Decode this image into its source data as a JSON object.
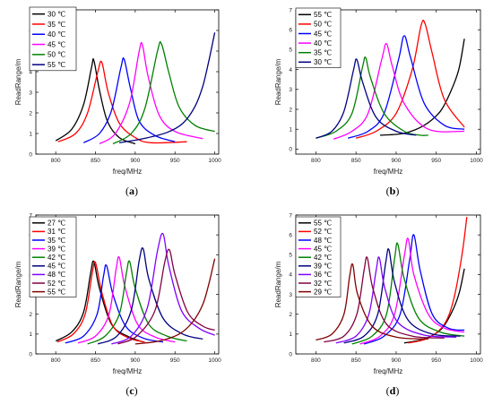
{
  "chart_data": [
    {
      "type": "line",
      "panel_label": "(a)",
      "xlabel": "freq/MHz",
      "ylabel": "ReadRange/m",
      "xlim": [
        775,
        1005
      ],
      "ylim": [
        0,
        7
      ],
      "xticks": [
        800,
        850,
        900,
        950,
        1000
      ],
      "yticks": [
        0,
        1,
        2,
        3,
        4,
        5,
        6,
        7
      ],
      "legend_position": "top-left",
      "series": [
        {
          "name": "30 ℃",
          "color": "#000000",
          "x": [
            800,
            820,
            835,
            845,
            848,
            855,
            865,
            880,
            900
          ],
          "y": [
            0.65,
            1.2,
            2.4,
            4.2,
            4.55,
            3.1,
            1.6,
            0.8,
            0.5
          ]
        },
        {
          "name": "35 ℃",
          "color": "#ff0000",
          "x": [
            803,
            825,
            840,
            853,
            858,
            866,
            880,
            900,
            920,
            965
          ],
          "y": [
            0.6,
            1.0,
            2.0,
            4.0,
            4.45,
            3.0,
            1.5,
            0.8,
            0.55,
            0.6
          ]
        },
        {
          "name": "40 ℃",
          "color": "#0000ff",
          "x": [
            835,
            855,
            870,
            882,
            886,
            894,
            905,
            925,
            950
          ],
          "y": [
            0.55,
            1.0,
            2.1,
            4.2,
            4.6,
            3.2,
            1.6,
            0.9,
            0.6
          ]
        },
        {
          "name": "45 ℃",
          "color": "#ff00ff",
          "x": [
            855,
            875,
            893,
            905,
            909,
            916,
            930,
            950,
            985
          ],
          "y": [
            0.5,
            1.0,
            2.5,
            5.0,
            5.3,
            3.8,
            1.9,
            1.1,
            0.75
          ]
        },
        {
          "name": "50 ℃",
          "color": "#008000",
          "x": [
            872,
            895,
            912,
            928,
            933,
            942,
            955,
            975,
            1000
          ],
          "y": [
            0.5,
            1.0,
            2.2,
            5.0,
            5.35,
            4.0,
            2.3,
            1.4,
            1.1
          ]
        },
        {
          "name": "55 ℃",
          "color": "#000080",
          "x": [
            880,
            910,
            940,
            960,
            975,
            985,
            993,
            1000
          ],
          "y": [
            0.55,
            0.75,
            1.05,
            1.5,
            2.3,
            3.3,
            4.6,
            5.9
          ]
        }
      ]
    },
    {
      "type": "line",
      "panel_label": "(b)",
      "xlabel": "freq/MHz",
      "ylabel": "ReadRange/m",
      "xlim": [
        775,
        1005
      ],
      "ylim": [
        -0.25,
        7
      ],
      "xticks": [
        800,
        850,
        900,
        950,
        1000
      ],
      "yticks": [
        0,
        1,
        2,
        3,
        4,
        5,
        6,
        7
      ],
      "legend_position": "top-left",
      "series": [
        {
          "name": "55 ℃",
          "color": "#000000",
          "x": [
            880,
            910,
            935,
            955,
            968,
            978,
            985
          ],
          "y": [
            0.7,
            0.8,
            1.2,
            1.9,
            2.9,
            4.0,
            5.55
          ]
        },
        {
          "name": "50 ℃",
          "color": "#ff0000",
          "x": [
            850,
            875,
            900,
            920,
            931,
            936,
            945,
            960,
            985
          ],
          "y": [
            0.55,
            0.9,
            1.8,
            4.0,
            6.2,
            6.3,
            4.8,
            2.5,
            1.1
          ]
        },
        {
          "name": "45 ℃",
          "color": "#0000ff",
          "x": [
            840,
            865,
            885,
            903,
            910,
            918,
            935,
            960,
            985
          ],
          "y": [
            0.55,
            0.9,
            1.8,
            4.5,
            5.7,
            4.6,
            2.3,
            1.2,
            1.0
          ]
        },
        {
          "name": "40 ℃",
          "color": "#ff00ff",
          "x": [
            822,
            845,
            865,
            882,
            888,
            895,
            910,
            940,
            985
          ],
          "y": [
            0.5,
            0.9,
            1.8,
            4.5,
            5.3,
            4.2,
            2.3,
            1.0,
            0.9
          ]
        },
        {
          "name": "35 ℃",
          "color": "#008000",
          "x": [
            800,
            825,
            845,
            858,
            862,
            868,
            885,
            910,
            930,
            940
          ],
          "y": [
            0.55,
            0.9,
            1.8,
            4.1,
            4.6,
            3.6,
            1.8,
            0.9,
            0.7,
            0.7
          ]
        },
        {
          "name": "30 ℃",
          "color": "#000080",
          "x": [
            800,
            820,
            835,
            847,
            851,
            858,
            875,
            900,
            925
          ],
          "y": [
            0.55,
            0.9,
            1.9,
            4.0,
            4.5,
            3.4,
            1.6,
            0.9,
            0.7
          ]
        }
      ]
    },
    {
      "type": "line",
      "panel_label": "(c)",
      "xlabel": "freq/MHz",
      "ylabel": "ReadRange/m",
      "xlim": [
        775,
        1005
      ],
      "ylim": [
        0,
        7
      ],
      "xticks": [
        800,
        850,
        900,
        950,
        1000
      ],
      "yticks": [
        0,
        1,
        2,
        3,
        4,
        5,
        6,
        7
      ],
      "legend_position": "top-left",
      "series": [
        {
          "name": "27 ℃",
          "color": "#000000",
          "x": [
            800,
            820,
            835,
            844,
            848,
            855,
            870,
            890,
            910
          ],
          "y": [
            0.65,
            1.1,
            2.1,
            4.1,
            4.65,
            3.3,
            1.5,
            0.9,
            0.6
          ]
        },
        {
          "name": "31 ℃",
          "color": "#ff0000",
          "x": [
            802,
            822,
            837,
            846,
            850,
            858,
            872,
            892,
            912
          ],
          "y": [
            0.6,
            1.0,
            2.0,
            4.1,
            4.6,
            3.1,
            1.4,
            0.8,
            0.6
          ]
        },
        {
          "name": "35 ℃",
          "color": "#0000ff",
          "x": [
            812,
            835,
            852,
            860,
            864,
            872,
            888,
            910,
            935
          ],
          "y": [
            0.55,
            0.9,
            2.0,
            3.9,
            4.45,
            3.0,
            1.4,
            0.8,
            0.6
          ]
        },
        {
          "name": "39 ℃",
          "color": "#ff00ff",
          "x": [
            828,
            850,
            867,
            876,
            880,
            887,
            903,
            925,
            950
          ],
          "y": [
            0.55,
            0.9,
            2.0,
            4.3,
            4.85,
            3.4,
            1.5,
            0.85,
            0.6
          ]
        },
        {
          "name": "42 ℃",
          "color": "#008000",
          "x": [
            840,
            862,
            880,
            889,
            893,
            900,
            917,
            940,
            965
          ],
          "y": [
            0.5,
            0.9,
            2.0,
            4.1,
            4.65,
            3.3,
            1.5,
            0.9,
            0.65
          ]
        },
        {
          "name": "45 ℃",
          "color": "#000080",
          "x": [
            853,
            877,
            895,
            905,
            910,
            917,
            935,
            960,
            985
          ],
          "y": [
            0.5,
            0.9,
            2.2,
            4.7,
            5.3,
            3.8,
            1.8,
            1.0,
            0.75
          ]
        },
        {
          "name": "48 ℃",
          "color": "#8000ff",
          "x": [
            870,
            895,
            915,
            928,
            935,
            942,
            958,
            980,
            1000
          ],
          "y": [
            0.5,
            0.9,
            2.3,
            5.2,
            6.05,
            4.5,
            2.2,
            1.3,
            0.95
          ]
        },
        {
          "name": "52 ℃",
          "color": "#800040",
          "x": [
            878,
            902,
            925,
            937,
            943,
            950,
            966,
            985,
            1000
          ],
          "y": [
            0.5,
            0.9,
            2.2,
            4.6,
            5.25,
            4.0,
            2.1,
            1.4,
            1.2
          ]
        },
        {
          "name": "55 ℃",
          "color": "#800000",
          "x": [
            900,
            930,
            955,
            972,
            985,
            993,
            1000
          ],
          "y": [
            0.5,
            0.65,
            1.0,
            1.6,
            2.5,
            3.6,
            4.8
          ]
        }
      ]
    },
    {
      "type": "line",
      "panel_label": "(d)",
      "xlabel": "freq/MHz",
      "ylabel": "ReadRange/m",
      "xlim": [
        775,
        1005
      ],
      "ylim": [
        0,
        7
      ],
      "xticks": [
        800,
        850,
        900,
        950,
        1000
      ],
      "yticks": [
        0,
        1,
        2,
        3,
        4,
        5,
        6,
        7
      ],
      "legend_position": "top-left",
      "series": [
        {
          "name": "55 ℃",
          "color": "#000000",
          "x": [
            910,
            935,
            955,
            968,
            978,
            985
          ],
          "y": [
            0.55,
            0.75,
            1.2,
            2.0,
            3.0,
            4.3
          ]
        },
        {
          "name": "52 ℃",
          "color": "#ff0000",
          "x": [
            915,
            940,
            960,
            972,
            982,
            988
          ],
          "y": [
            0.55,
            0.8,
            1.5,
            2.8,
            5.0,
            6.9
          ]
        },
        {
          "name": "48 ℃",
          "color": "#0000ff",
          "x": [
            860,
            885,
            905,
            917,
            922,
            930,
            945,
            965,
            985
          ],
          "y": [
            0.5,
            0.9,
            2.0,
            4.8,
            6.0,
            4.2,
            2.0,
            1.3,
            1.2
          ]
        },
        {
          "name": "45 ℃",
          "color": "#ff00ff",
          "x": [
            855,
            880,
            898,
            910,
            915,
            922,
            940,
            960,
            985
          ],
          "y": [
            0.5,
            0.9,
            2.0,
            4.9,
            5.8,
            4.0,
            2.0,
            1.3,
            1.1
          ]
        },
        {
          "name": "42 ℃",
          "color": "#008000",
          "x": [
            845,
            870,
            888,
            898,
            902,
            910,
            928,
            955,
            985
          ],
          "y": [
            0.5,
            0.9,
            2.0,
            4.8,
            5.55,
            3.8,
            1.8,
            1.1,
            0.9
          ]
        },
        {
          "name": "39 ℃",
          "color": "#000080",
          "x": [
            835,
            860,
            877,
            887,
            891,
            898,
            915,
            945,
            980
          ],
          "y": [
            0.55,
            0.9,
            2.0,
            4.6,
            5.25,
            3.6,
            1.7,
            1.0,
            0.9
          ]
        },
        {
          "name": "36 ℃",
          "color": "#8000ff",
          "x": [
            825,
            850,
            866,
            875,
            879,
            886,
            902,
            935,
            975
          ],
          "y": [
            0.55,
            0.9,
            2.0,
            4.2,
            4.85,
            3.3,
            1.6,
            0.95,
            0.85
          ]
        },
        {
          "name": "32 ℃",
          "color": "#800040",
          "x": [
            810,
            835,
            851,
            860,
            864,
            871,
            888,
            920,
            960
          ],
          "y": [
            0.6,
            0.9,
            2.0,
            4.2,
            4.85,
            3.3,
            1.5,
            0.9,
            0.8
          ]
        },
        {
          "name": "29 ℃",
          "color": "#800000",
          "x": [
            800,
            820,
            835,
            842,
            846,
            852,
            870,
            900,
            940
          ],
          "y": [
            0.7,
            1.0,
            2.0,
            3.9,
            4.5,
            3.0,
            1.4,
            0.85,
            0.75
          ]
        }
      ]
    }
  ]
}
